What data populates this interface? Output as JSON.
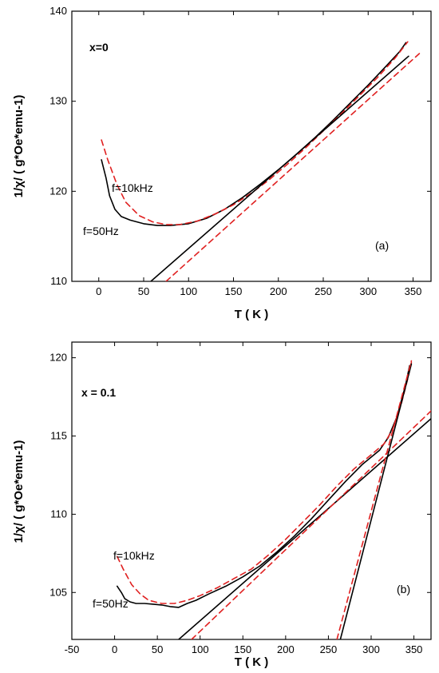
{
  "chart_data": [
    {
      "type": "line",
      "panel_label": "(a)",
      "composition_label": "x=0",
      "xlabel": "T ( K )",
      "ylabel": "1/χ/ ( g*Oe*emu-1)",
      "xlim": [
        -30,
        370
      ],
      "ylim": [
        110,
        140
      ],
      "xticks": [
        0,
        50,
        100,
        150,
        200,
        250,
        300,
        350
      ],
      "yticks": [
        110,
        120,
        130,
        140
      ],
      "grid": false,
      "annotations": [
        "f=10kHz",
        "f=50Hz"
      ],
      "series": [
        {
          "name": "f=50Hz",
          "color": "#000000",
          "style": "solid",
          "x": [
            3,
            8,
            12,
            18,
            25,
            35,
            50,
            65,
            80,
            100,
            120,
            140,
            160,
            180,
            200,
            220,
            240,
            260,
            280,
            300,
            320,
            335,
            342
          ],
          "y": [
            123.5,
            121.5,
            119.5,
            118.0,
            117.2,
            116.8,
            116.4,
            116.2,
            116.2,
            116.4,
            117.0,
            118.0,
            119.3,
            120.8,
            122.4,
            124.1,
            125.9,
            127.8,
            129.8,
            131.8,
            133.9,
            135.5,
            136.5
          ]
        },
        {
          "name": "f=10kHz",
          "color": "#e02020",
          "style": "dashed",
          "x": [
            3,
            10,
            20,
            30,
            45,
            60,
            75,
            90,
            110,
            130,
            150,
            170,
            190,
            210,
            230,
            250,
            270,
            290,
            310,
            330,
            344
          ],
          "y": [
            125.7,
            123.5,
            120.8,
            118.8,
            117.3,
            116.6,
            116.3,
            116.3,
            116.7,
            117.5,
            118.5,
            119.8,
            121.3,
            123.0,
            124.8,
            126.7,
            128.6,
            130.6,
            132.6,
            134.8,
            136.6
          ]
        },
        {
          "name": "linear fit f=50Hz",
          "color": "#000000",
          "style": "solid",
          "x": [
            58,
            345
          ],
          "y": [
            110.0,
            135.0
          ]
        },
        {
          "name": "linear fit f=10kHz",
          "color": "#e02020",
          "style": "dashed",
          "x": [
            75,
            357
          ],
          "y": [
            110.0,
            135.3
          ]
        }
      ]
    },
    {
      "type": "line",
      "panel_label": "(b)",
      "composition_label": "x = 0.1",
      "xlabel": "T ( K )",
      "ylabel": "1/χ/ ( g*Oe*emu-1)",
      "xlim": [
        -50,
        370
      ],
      "ylim": [
        102,
        121
      ],
      "xticks": [
        -50,
        0,
        50,
        100,
        150,
        200,
        250,
        300,
        350
      ],
      "yticks": [
        105,
        110,
        115,
        120
      ],
      "grid": false,
      "annotations": [
        "f=10kHz",
        "f=50Hz"
      ],
      "series": [
        {
          "name": "f=50Hz",
          "color": "#000000",
          "style": "solid",
          "x": [
            3,
            8,
            12,
            18,
            25,
            35,
            45,
            55,
            65,
            75,
            85,
            95,
            110,
            130,
            150,
            170,
            190,
            210,
            230,
            250,
            270,
            290,
            310,
            320,
            330,
            340,
            345
          ],
          "y": [
            105.4,
            105.0,
            104.6,
            104.4,
            104.3,
            104.3,
            104.25,
            104.2,
            104.1,
            104.05,
            104.3,
            104.5,
            104.9,
            105.4,
            106.0,
            106.7,
            107.6,
            108.6,
            109.7,
            110.9,
            112.1,
            113.2,
            114.1,
            114.9,
            116.2,
            118.2,
            119.5
          ]
        },
        {
          "name": "f=10kHz",
          "color": "#e02020",
          "style": "dashed",
          "x": [
            3,
            10,
            20,
            30,
            40,
            55,
            70,
            85,
            100,
            120,
            140,
            160,
            180,
            200,
            220,
            240,
            260,
            280,
            300,
            315,
            325,
            335,
            343,
            347
          ],
          "y": [
            107.3,
            106.5,
            105.5,
            104.9,
            104.5,
            104.3,
            104.3,
            104.5,
            104.8,
            105.3,
            105.9,
            106.5,
            107.4,
            108.4,
            109.5,
            110.6,
            111.8,
            112.9,
            113.8,
            114.5,
            115.4,
            117.0,
            118.7,
            119.7
          ]
        },
        {
          "name": "linear fit f=50Hz (low T)",
          "color": "#000000",
          "style": "solid",
          "x": [
            75,
            372
          ],
          "y": [
            102.0,
            116.2
          ]
        },
        {
          "name": "linear fit f=10kHz (low T)",
          "color": "#e02020",
          "style": "dashed",
          "x": [
            90,
            372
          ],
          "y": [
            102.0,
            116.7
          ]
        },
        {
          "name": "linear fit f=50Hz (high T)",
          "color": "#000000",
          "style": "solid",
          "x": [
            264,
            347
          ],
          "y": [
            102.0,
            119.6
          ]
        },
        {
          "name": "linear fit f=10kHz (high T)",
          "color": "#e02020",
          "style": "dashed",
          "x": [
            260,
            347
          ],
          "y": [
            102.0,
            119.8
          ]
        }
      ]
    }
  ]
}
